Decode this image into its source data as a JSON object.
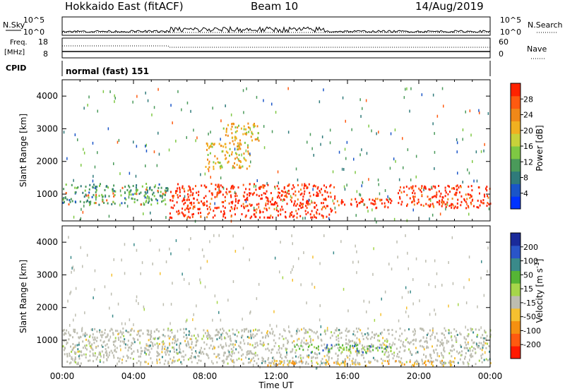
{
  "header": {
    "station": "Hokkaido East (fitACF)",
    "beam": "Beam 10",
    "date": "14/Aug/2019"
  },
  "strip_panels": {
    "nsky": {
      "label": "N.Sky",
      "ticks": [
        "10^5",
        "10^0"
      ]
    },
    "nsearch": {
      "label": "N.Search",
      "ticks": [
        "10^5",
        "10^0"
      ]
    },
    "freq": {
      "label_line1": "Freq.",
      "label_line2": "[MHz]",
      "ticks": [
        "18",
        "8"
      ]
    },
    "nave": {
      "label": "Nave",
      "ticks": [
        "60",
        "0"
      ]
    },
    "cpid": {
      "label": "CPID",
      "value": "normal (fast) 151"
    }
  },
  "chart_data": [
    {
      "type": "heatmap",
      "title": "",
      "ylabel": "Slant Range [km]",
      "xlabel": "",
      "ylim": [
        180,
        4500
      ],
      "y_ticks": [
        "1000",
        "2000",
        "3000",
        "4000"
      ],
      "colorbar": {
        "label": "Power [dB]",
        "range": [
          0,
          32
        ],
        "tick_labels": [
          "4",
          "8",
          "12",
          "16",
          "20",
          "24",
          "28"
        ],
        "colors": [
          "#0033ff",
          "#1a55c8",
          "#2f7a7a",
          "#4a9a5a",
          "#7ec843",
          "#c8d23a",
          "#f0b020",
          "#f08818",
          "#ff5a10",
          "#ff2200"
        ]
      },
      "echo_regions": [
        {
          "t0": 0.0,
          "t1": 5.9,
          "r0": 700,
          "r1": 1350,
          "level": "mid-low"
        },
        {
          "t0": 6.0,
          "t1": 15.3,
          "r0": 300,
          "r1": 1350,
          "level": "high"
        },
        {
          "t0": 8.0,
          "t1": 10.5,
          "r0": 1800,
          "r1": 2600,
          "level": "mid"
        },
        {
          "t0": 9.0,
          "t1": 11.0,
          "r0": 2600,
          "r1": 3200,
          "level": "mid"
        },
        {
          "t0": 15.3,
          "t1": 18.5,
          "r0": 600,
          "r1": 900,
          "level": "high"
        },
        {
          "t0": 18.8,
          "t1": 24.0,
          "r0": 600,
          "r1": 1300,
          "level": "high"
        }
      ]
    },
    {
      "type": "heatmap",
      "title": "",
      "ylabel": "Slant Range [km]",
      "xlabel": "Time UT",
      "ylim": [
        180,
        4500
      ],
      "y_ticks": [
        "1000",
        "2000",
        "3000",
        "4000"
      ],
      "x_ticks": [
        "00:00",
        "04:00",
        "08:00",
        "12:00",
        "16:00",
        "20:00",
        "00:00"
      ],
      "colorbar": {
        "label": "Velocity [m s^-1]",
        "label_main": "Velocity [m s",
        "label_exp": "-1",
        "tick_labels": [
          "200",
          "100",
          "50",
          "15",
          "-15",
          "-50",
          "-100",
          "-200"
        ],
        "colors": [
          "#1a2a9a",
          "#2a55c8",
          "#3a8a8a",
          "#55b535",
          "#a6d64a",
          "#bdbdb0",
          "#f5c030",
          "#f59010",
          "#ff5a10",
          "#ff1a00"
        ]
      },
      "echo_regions": [
        {
          "t0": 0.0,
          "t1": 24.0,
          "r0": 300,
          "r1": 1400,
          "level": "ground-scatter"
        },
        {
          "t0": 13.0,
          "t1": 18.5,
          "r0": 650,
          "r1": 900,
          "level": "positive"
        },
        {
          "t0": 11.5,
          "t1": 22.0,
          "r0": 250,
          "r1": 400,
          "level": "negative"
        }
      ]
    }
  ]
}
